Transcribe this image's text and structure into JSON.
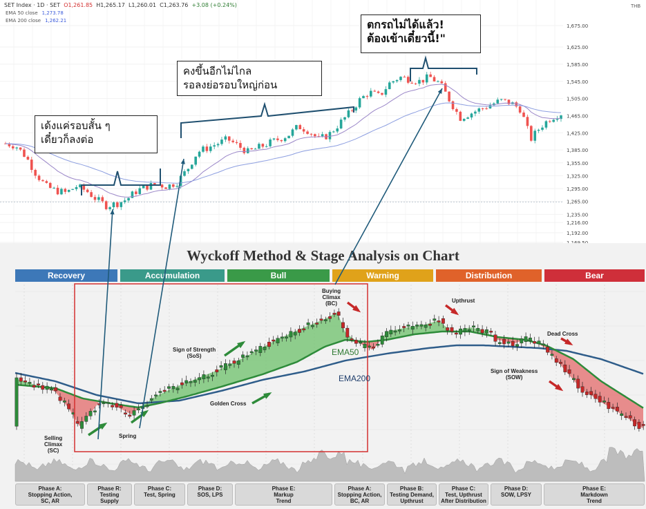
{
  "header": {
    "symbol": "SET Index · 1D · SET",
    "open": "O1,261.85",
    "high": "H1,265.17",
    "low": "L1,260.01",
    "close": "C1,263.76",
    "change": "+3.08 (+0.24%)",
    "ema50_label": "EMA 50 close",
    "ema50_value": "1,273.78",
    "ema200_label": "EMA 200 close",
    "ema200_value": "1,262.21",
    "currency": "THB"
  },
  "callouts": {
    "c1_line1": "เด้งแค่รอบสั้น ๆ",
    "c1_line2": "เดี๋ยวก็ลงต่อ",
    "c2_line1": "คงขึ้นอีกไม่ไกล",
    "c2_line2": "รอลงย่อรอบใหญ่ก่อน",
    "c3_line1": "ตกรถไม่ได้แล้ว!",
    "c3_line2": "ต้องเข้าเดี๋ยวนี้!\""
  },
  "chart_data": [
    {
      "type": "line",
      "title": "",
      "yaxis_ticks": [
        "1,675.00",
        "1,625.00",
        "1,585.00",
        "1,545.00",
        "1,505.00",
        "1,465.00",
        "1,425.00",
        "1,385.00",
        "1,355.00",
        "1,325.00",
        "1,295.00",
        "1,265.00",
        "1,235.00",
        "1,216.00",
        "1,192.00",
        "1,169.50"
      ],
      "series": [
        {
          "name": "EMA 50 close",
          "color": "#9a86c8"
        },
        {
          "name": "EMA 200 close",
          "color": "#8c9ee0"
        }
      ],
      "close_path": [
        1400,
        1395,
        1370,
        1330,
        1300,
        1290,
        1285,
        1300,
        1290,
        1270,
        1255,
        1260,
        1270,
        1290,
        1300,
        1305,
        1300,
        1310,
        1340,
        1380,
        1390,
        1400,
        1410,
        1395,
        1380,
        1390,
        1400,
        1410,
        1420,
        1440,
        1430,
        1410,
        1420,
        1445,
        1470,
        1500,
        1520,
        1510,
        1540,
        1555,
        1550,
        1545,
        1555,
        1540,
        1500,
        1460,
        1470,
        1480,
        1490,
        1500,
        1495,
        1480,
        1410,
        1440,
        1460,
        1470
      ]
    },
    {
      "type": "line",
      "title": "Wyckoff Method & Stage Analysis on Chart",
      "series": [
        {
          "name": "EMA50",
          "color": "#2e8b3a"
        },
        {
          "name": "EMA200",
          "color": "#2f5d8a"
        }
      ]
    }
  ],
  "wyckoff": {
    "stages": [
      {
        "label": "Recovery",
        "color": "#3d78b8"
      },
      {
        "label": "Accumulation",
        "color": "#3a9a8a"
      },
      {
        "label": "Bull",
        "color": "#3a9a48"
      },
      {
        "label": "Warning",
        "color": "#e0a21a"
      },
      {
        "label": "Distribution",
        "color": "#e0622a"
      },
      {
        "label": "Bear",
        "color": "#cf2f3a"
      }
    ],
    "labels": {
      "sc": "Selling\nClimax\n(SC)",
      "spring": "Spring",
      "sos": "Sign of Strength\n(SoS)",
      "golden": "Golden Cross",
      "bc": "Buying\nClimax\n(BC)",
      "upthrust": "Upthrust",
      "dead": "Dead Cross",
      "sow": "Sign of Weakness\n(SOW)",
      "ema50": "EMA50",
      "ema200": "EMA200"
    },
    "phases": [
      "Phase A:\nStopping Action,\nSC, AR",
      "Phase R:\nTesting\nSupply",
      "Phase C:\nTest, Spring",
      "Phase D:\nSOS, LPS",
      "Phase E:\nMarkup\nTrend",
      "Phase A:\nStopping Action,\nBC, AR",
      "Phase B:\nTesting Demand,\nUpthrust",
      "Phase C:\nTest, Upthrust\nAfter Distribution",
      "Phase D:\nSOW, LPSY",
      "Phase E:\nMarkdown\nTrend"
    ]
  }
}
